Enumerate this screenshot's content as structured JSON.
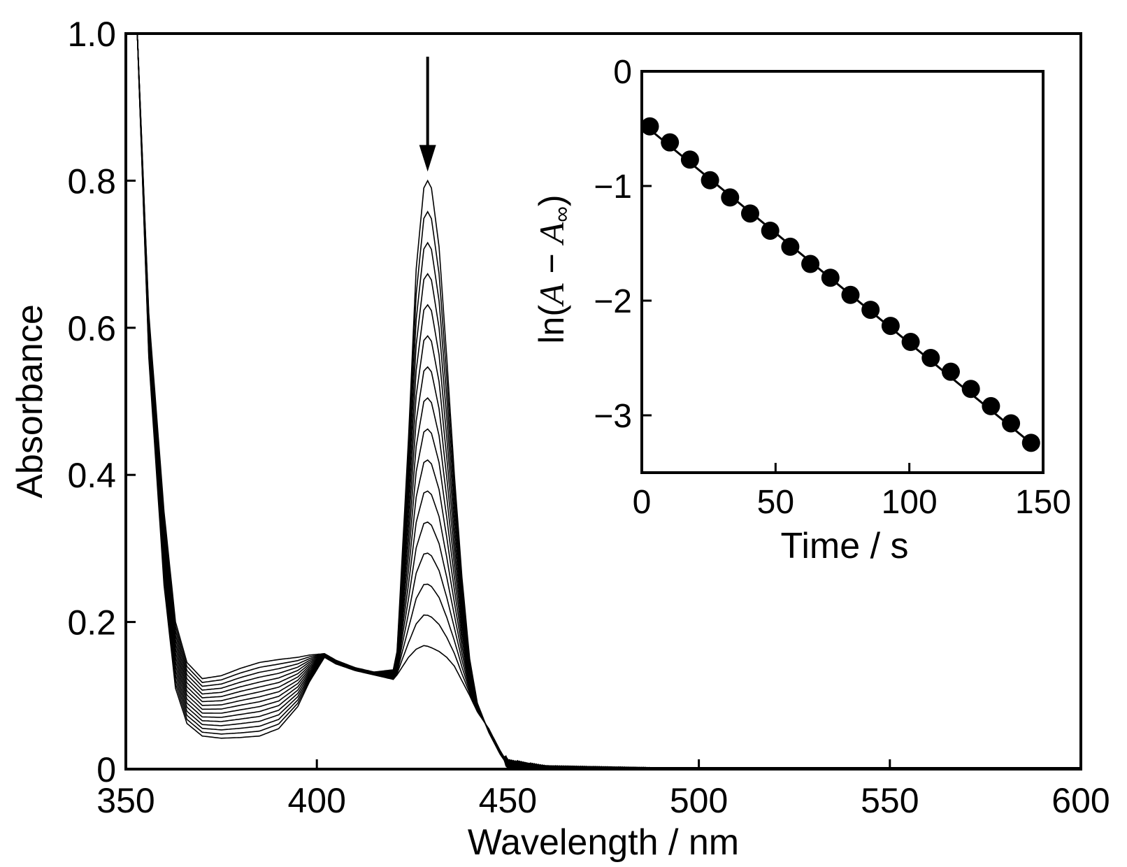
{
  "chart_data": [
    {
      "type": "line",
      "title": "",
      "xlabel": "Wavelength / nm",
      "ylabel": "Absorbance",
      "xlim": [
        350,
        600
      ],
      "ylim": [
        0,
        1.0
      ],
      "xticks": [
        350,
        400,
        450,
        500,
        550,
        600
      ],
      "xtick_labels": [
        "350",
        "400",
        "450",
        "500",
        "550",
        "600"
      ],
      "yticks": [
        0,
        0.2,
        0.4,
        0.6,
        0.8,
        1.0
      ],
      "ytick_labels": [
        "0",
        "0.2",
        "0.4",
        "0.6",
        "0.8",
        "1.0"
      ],
      "grid": false,
      "annotation": {
        "type": "arrow-down",
        "wavelength": 429,
        "absorbance_from": 0.94,
        "absorbance_to": 0.82,
        "meaning": "absorbance decreases with time"
      },
      "spectra": {
        "count": 16,
        "shape_wavelengths": [
          353,
          356,
          360,
          363,
          366,
          370,
          375,
          380,
          385,
          390,
          395,
          398,
          402,
          405,
          410,
          415,
          420,
          421,
          424,
          426,
          428,
          429,
          430,
          432,
          434,
          436,
          438,
          440,
          442,
          445,
          448,
          450,
          460,
          500,
          600
        ],
        "first_spectrum": [
          1.0,
          0.62,
          0.35,
          0.2,
          0.145,
          0.123,
          0.127,
          0.137,
          0.145,
          0.149,
          0.152,
          0.155,
          0.157,
          0.148,
          0.138,
          0.132,
          0.135,
          0.16,
          0.45,
          0.68,
          0.79,
          0.8,
          0.79,
          0.71,
          0.56,
          0.4,
          0.26,
          0.15,
          0.09,
          0.05,
          0.02,
          0.005,
          0.0,
          0.0,
          0.0
        ],
        "last_spectrum": [
          1.0,
          0.56,
          0.25,
          0.11,
          0.062,
          0.045,
          0.042,
          0.043,
          0.045,
          0.055,
          0.085,
          0.118,
          0.152,
          0.143,
          0.134,
          0.128,
          0.122,
          0.128,
          0.152,
          0.163,
          0.168,
          0.167,
          0.165,
          0.16,
          0.152,
          0.14,
          0.12,
          0.1,
          0.078,
          0.055,
          0.025,
          0.008,
          0.0,
          0.0,
          0.0
        ]
      }
    },
    {
      "type": "scatter",
      "title": "",
      "xlabel": "Time / s",
      "ylabel": "ln(A − A∞)",
      "ylabel_parts": {
        "prefix": "ln(",
        "var1": "A",
        "op": " − ",
        "var2": "A",
        "sub": "∞",
        "suffix": ")"
      },
      "xlim": [
        0,
        150
      ],
      "ylim": [
        -3.5,
        0
      ],
      "xticks": [
        0,
        50,
        100,
        150
      ],
      "xtick_labels": [
        "0",
        "50",
        "100",
        "150"
      ],
      "yticks": [
        0,
        -1,
        -2,
        -3
      ],
      "ytick_labels": [
        "0",
        "−1",
        "−2",
        "−3"
      ],
      "grid": false,
      "fit_line": {
        "slope": -0.0192,
        "intercept": -0.45
      },
      "points": {
        "x": [
          3,
          10.5,
          18,
          25.5,
          33,
          40.5,
          48,
          55.5,
          63,
          70.5,
          78,
          85.5,
          93,
          100.5,
          108,
          115.5,
          123,
          130.5,
          138,
          145.5
        ],
        "y": [
          -0.48,
          -0.62,
          -0.77,
          -0.95,
          -1.1,
          -1.24,
          -1.39,
          -1.53,
          -1.68,
          -1.8,
          -1.95,
          -2.08,
          -2.22,
          -2.36,
          -2.5,
          -2.62,
          -2.77,
          -2.92,
          -3.07,
          -3.24
        ]
      }
    }
  ]
}
